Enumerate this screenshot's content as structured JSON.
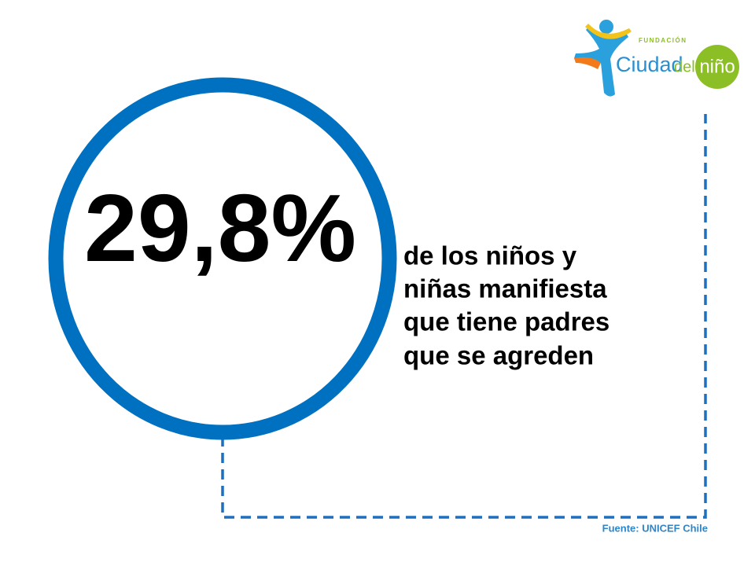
{
  "stat": {
    "value": "29,8%",
    "description": [
      "de los niños y",
      "niñas manifiesta",
      "que tiene padres",
      "que se agreden"
    ]
  },
  "logo": {
    "foundation": "FUNDACIÓN",
    "name": "Ciudad",
    "connector": "del",
    "highlight": "niño"
  },
  "source": "Fuente: UNICEF Chile"
}
